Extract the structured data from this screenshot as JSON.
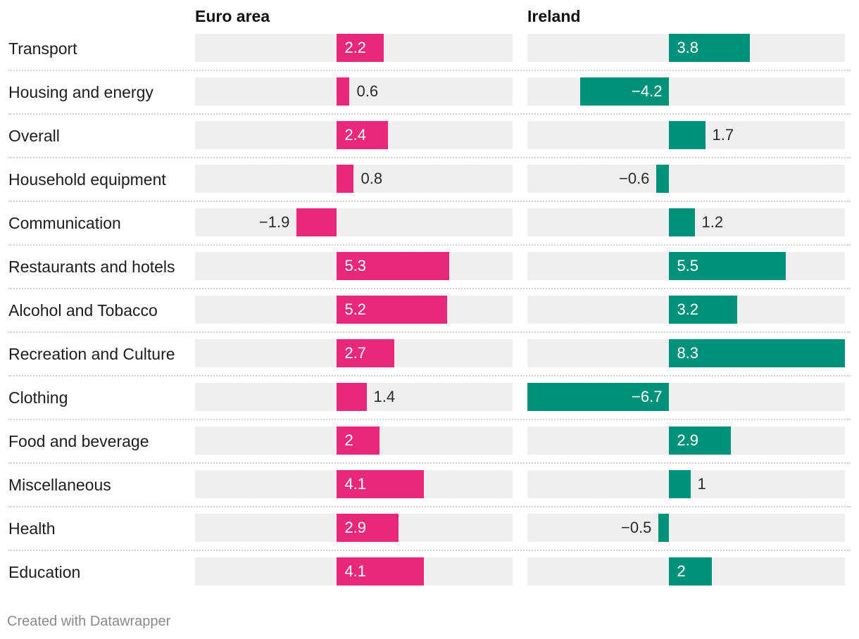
{
  "chart_data": {
    "type": "bar",
    "orientation": "horizontal",
    "categories": [
      "Transport",
      "Housing and energy",
      "Overall",
      "Household equipment",
      "Communication",
      "Restaurants and hotels",
      "Alcohol and Tobacco",
      "Recreation and Culture",
      "Clothing",
      "Food and beverage",
      "Miscellaneous",
      "Health",
      "Education"
    ],
    "series": [
      {
        "name": "Euro area",
        "color": "#e8297a",
        "values": [
          2.2,
          0.6,
          2.4,
          0.8,
          -1.9,
          5.3,
          5.2,
          2.7,
          1.4,
          2,
          4.1,
          2.9,
          4.1
        ]
      },
      {
        "name": "Ireland",
        "color": "#00917a",
        "values": [
          3.8,
          -4.2,
          1.7,
          -0.6,
          1.2,
          5.5,
          3.2,
          8.3,
          -6.7,
          2.9,
          1,
          -0.5,
          2
        ]
      }
    ],
    "xlim": [
      -6.7,
      8.3
    ],
    "title": "",
    "xlabel": "",
    "ylabel": ""
  },
  "footer": "Created with Datawrapper"
}
